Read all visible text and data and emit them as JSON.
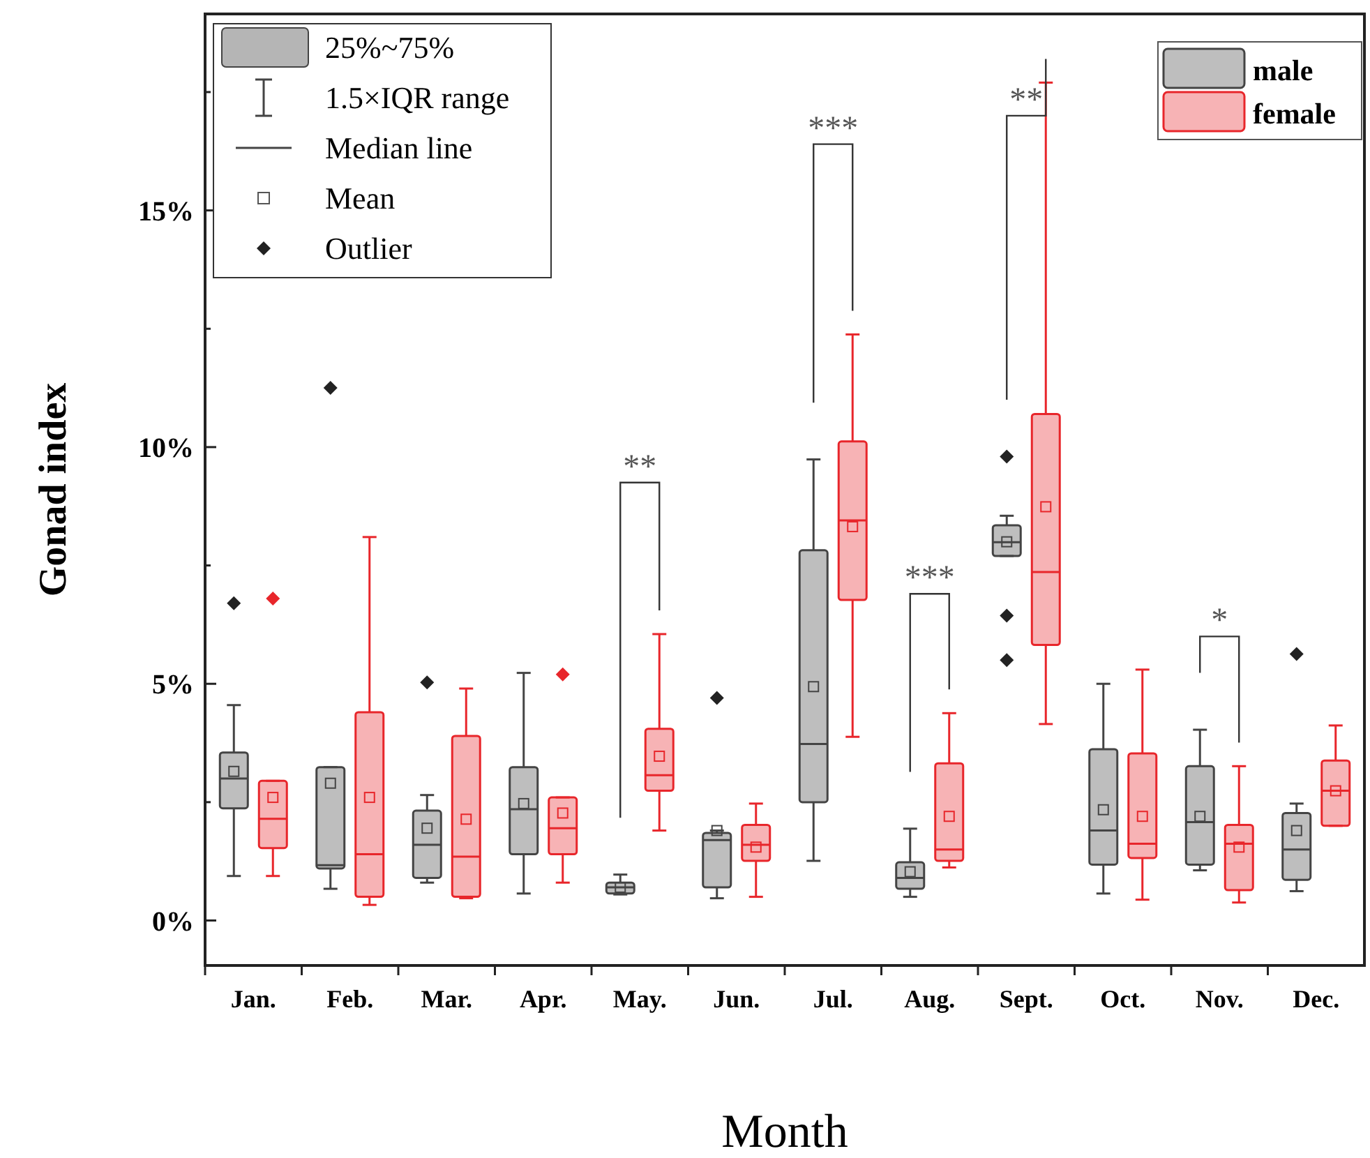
{
  "chart_data": {
    "type": "box",
    "xlabel": "Month",
    "ylabel": "Gonad index",
    "categories": [
      "Jan.",
      "Feb.",
      "Mar.",
      "Apr.",
      "May.",
      "Jun.",
      "Jul.",
      "Aug.",
      "Sept.",
      "Oct.",
      "Nov.",
      "Dec."
    ],
    "ylim": [
      -0.95,
      19.15
    ],
    "yticks": [
      {
        "value": 0,
        "label": "0%"
      },
      {
        "value": 2.5,
        "label": null
      },
      {
        "value": 5,
        "label": "5%"
      },
      {
        "value": 7.5,
        "label": null
      },
      {
        "value": 10,
        "label": "10%"
      },
      {
        "value": 12.5,
        "label": null
      },
      {
        "value": 15,
        "label": "15%"
      },
      {
        "value": 17.5,
        "label": null
      }
    ],
    "legend": "top right",
    "grid": false,
    "series": [
      {
        "name": "male",
        "color": "#444444",
        "boxes": [
          {
            "low": 0.94,
            "q1": 2.37,
            "median": 3.0,
            "q3": 3.55,
            "high": 4.55,
            "mean": 3.15,
            "outliers": [
              6.7
            ]
          },
          {
            "low": 0.67,
            "q1": 1.1,
            "median": 1.17,
            "q3": 3.24,
            "high": 3.24,
            "mean": 2.9,
            "outliers": [
              11.25
            ]
          },
          {
            "low": 0.8,
            "q1": 0.9,
            "median": 1.6,
            "q3": 2.32,
            "high": 2.65,
            "mean": 1.95,
            "outliers": [
              5.03
            ]
          },
          {
            "low": 0.57,
            "q1": 1.4,
            "median": 2.35,
            "q3": 3.24,
            "high": 5.23,
            "mean": 2.47
          },
          {
            "low": 0.55,
            "q1": 0.57,
            "median": 0.7,
            "q3": 0.8,
            "high": 0.97,
            "mean": 0.7
          },
          {
            "low": 0.47,
            "q1": 0.7,
            "median": 1.7,
            "q3": 1.85,
            "high": 1.9,
            "mean": 1.9,
            "outliers": [
              4.7
            ]
          },
          {
            "low": 1.26,
            "q1": 2.5,
            "median": 3.73,
            "q3": 7.82,
            "high": 9.74,
            "mean": 4.94
          },
          {
            "low": 0.5,
            "q1": 0.67,
            "median": 0.9,
            "q3": 1.23,
            "high": 1.94,
            "mean": 1.03
          },
          {
            "low": 7.7,
            "q1": 7.7,
            "median": 7.99,
            "q3": 8.35,
            "high": 8.55,
            "mean": 8.0,
            "outliers": [
              9.8,
              6.44,
              5.5
            ]
          },
          {
            "low": 0.57,
            "q1": 1.18,
            "median": 1.9,
            "q3": 3.62,
            "high": 5.0,
            "mean": 2.34
          },
          {
            "low": 1.06,
            "q1": 1.18,
            "median": 2.08,
            "q3": 3.26,
            "high": 4.03,
            "mean": 2.2
          },
          {
            "low": 0.62,
            "q1": 0.86,
            "median": 1.5,
            "q3": 2.27,
            "high": 2.47,
            "mean": 1.9,
            "outliers": [
              5.63
            ]
          }
        ]
      },
      {
        "name": "female",
        "color": "#e8262b",
        "boxes": [
          {
            "low": 0.94,
            "q1": 1.53,
            "median": 2.15,
            "q3": 2.95,
            "high": 2.95,
            "mean": 2.6,
            "outliers": [
              6.8
            ]
          },
          {
            "low": 0.33,
            "q1": 0.5,
            "median": 1.4,
            "q3": 4.4,
            "high": 8.1,
            "mean": 2.6
          },
          {
            "low": 0.47,
            "q1": 0.5,
            "median": 1.35,
            "q3": 3.9,
            "high": 4.9,
            "mean": 2.14
          },
          {
            "low": 0.8,
            "q1": 1.4,
            "median": 1.95,
            "q3": 2.6,
            "high": 2.6,
            "mean": 2.27,
            "outliers": [
              5.2
            ]
          },
          {
            "low": 1.9,
            "q1": 2.74,
            "median": 3.07,
            "q3": 4.05,
            "high": 6.05,
            "mean": 3.47
          },
          {
            "low": 0.5,
            "q1": 1.26,
            "median": 1.6,
            "q3": 2.02,
            "high": 2.47,
            "mean": 1.55
          },
          {
            "low": 3.88,
            "q1": 6.77,
            "median": 8.45,
            "q3": 10.12,
            "high": 12.38,
            "mean": 8.32
          },
          {
            "low": 1.12,
            "q1": 1.26,
            "median": 1.5,
            "q3": 3.32,
            "high": 4.38,
            "mean": 2.2
          },
          {
            "low": 4.15,
            "q1": 5.82,
            "median": 7.36,
            "q3": 10.7,
            "high": 17.7,
            "mean": 8.74
          },
          {
            "low": 0.44,
            "q1": 1.32,
            "median": 1.62,
            "q3": 3.53,
            "high": 5.3,
            "mean": 2.2
          },
          {
            "low": 0.38,
            "q1": 0.64,
            "median": 1.62,
            "q3": 2.02,
            "high": 3.26,
            "mean": 1.55
          },
          {
            "low": 2.0,
            "q1": 2.0,
            "median": 2.74,
            "q3": 3.38,
            "high": 4.12,
            "mean": 2.74
          }
        ]
      }
    ],
    "annotations": [
      "25%~75%",
      "1.5×IQR range",
      "Median line",
      "Mean",
      "Outlier",
      "**",
      "***",
      "***",
      "**",
      "*"
    ]
  }
}
